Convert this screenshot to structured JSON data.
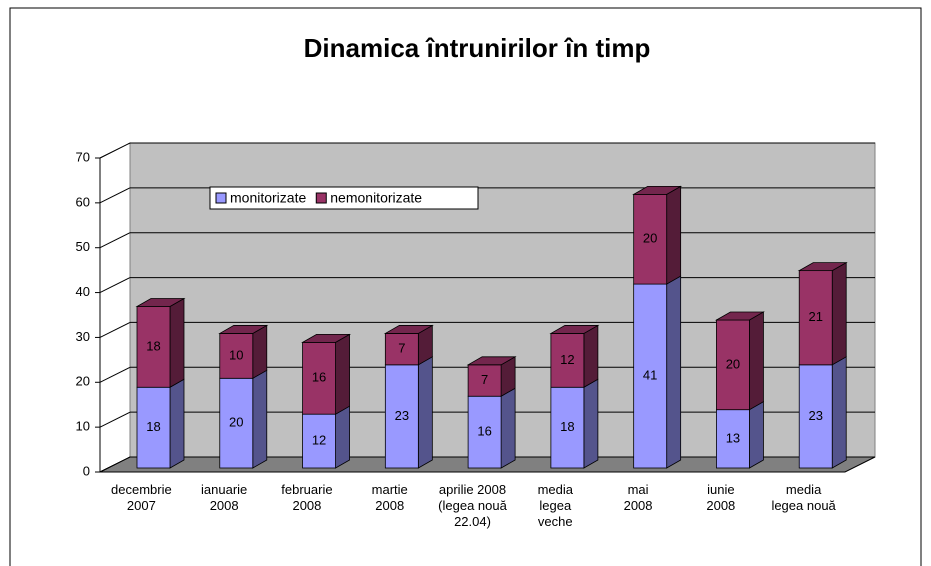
{
  "chart_data": {
    "type": "bar3d_stacked",
    "title": "Dinamica întrunirilor în timp",
    "categories": [
      "decembrie\n2007",
      "ianuarie\n2008",
      "februarie\n2008",
      "martie\n2008",
      "aprilie 2008\n(legea nouă\n22.04)",
      "media\nlegea\nveche",
      "mai\n2008",
      "iunie\n2008",
      "media\nlegea nouă"
    ],
    "series": [
      {
        "name": "monitorizate",
        "color": "#9999ff",
        "values": [
          18,
          20,
          12,
          23,
          16,
          18,
          41,
          13,
          23
        ]
      },
      {
        "name": "nemonitorizate",
        "color": "#993366",
        "values": [
          18,
          10,
          16,
          7,
          7,
          12,
          20,
          20,
          21
        ]
      }
    ],
    "ylim": [
      0,
      70
    ],
    "yticks": [
      0,
      10,
      20,
      30,
      40,
      50,
      60,
      70
    ],
    "grid": true
  }
}
